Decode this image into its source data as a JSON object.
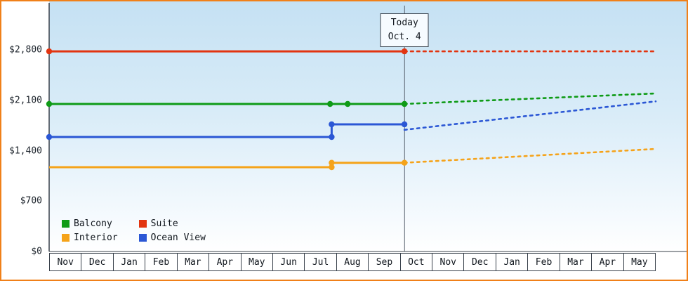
{
  "frame": {
    "border_color": "#f08019"
  },
  "today_box": {
    "line1": "Today",
    "line2": "Oct. 4"
  },
  "legend": {
    "items": [
      {
        "label": "Balcony",
        "color": "#0f9b17"
      },
      {
        "label": "Suite",
        "color": "#e23410"
      },
      {
        "label": "Interior",
        "color": "#f5a31a"
      },
      {
        "label": "Ocean View",
        "color": "#2b57d5"
      }
    ]
  },
  "chart_data": {
    "type": "line",
    "title": "",
    "x_axis": {
      "months": [
        "Nov",
        "Dec",
        "Jan",
        "Feb",
        "Mar",
        "Apr",
        "May",
        "Jun",
        "Jul",
        "Aug",
        "Sep",
        "Oct",
        "Nov",
        "Dec",
        "Jan",
        "Feb",
        "Mar",
        "Apr",
        "May"
      ]
    },
    "y_axis": {
      "max": 2800,
      "ticks": [
        {
          "label": "$0",
          "value": 0
        },
        {
          "label": "$700",
          "value": 700
        },
        {
          "label": "$1,400",
          "value": 1400
        },
        {
          "label": "$2,100",
          "value": 2100
        },
        {
          "label": "$2,800",
          "value": 2800
        }
      ]
    },
    "today": {
      "month_index": 11,
      "day": 4
    },
    "series": [
      {
        "name": "Suite",
        "color": "#e23410",
        "history": [
          [
            0,
            2780
          ],
          [
            11.13,
            2780
          ]
        ],
        "markers": [
          [
            0,
            2780
          ],
          [
            11.13,
            2780
          ]
        ],
        "forecast": [
          [
            11.13,
            2780
          ],
          [
            19,
            2780
          ]
        ]
      },
      {
        "name": "Balcony",
        "color": "#0f9b17",
        "history": [
          [
            0,
            2049
          ],
          [
            11.13,
            2049
          ]
        ],
        "markers": [
          [
            0,
            2049
          ],
          [
            8.8,
            2049
          ],
          [
            9.35,
            2049
          ],
          [
            11.13,
            2049
          ]
        ],
        "forecast": [
          [
            11.13,
            2049
          ],
          [
            19,
            2195
          ]
        ]
      },
      {
        "name": "Ocean View",
        "color": "#2b57d5",
        "history": [
          [
            0,
            1590
          ],
          [
            8.85,
            1590
          ],
          [
            8.85,
            1766
          ],
          [
            11.13,
            1766
          ]
        ],
        "markers": [
          [
            0,
            1590
          ],
          [
            8.85,
            1590
          ],
          [
            8.85,
            1766
          ],
          [
            11.13,
            1766
          ]
        ],
        "forecast": [
          [
            11.13,
            1690
          ],
          [
            19,
            2085
          ]
        ]
      },
      {
        "name": "Interior",
        "color": "#f5a31a",
        "history": [
          [
            0,
            1171
          ],
          [
            8.85,
            1171
          ],
          [
            8.85,
            1232
          ],
          [
            11.13,
            1232
          ]
        ],
        "markers": [
          [
            8.85,
            1171
          ],
          [
            8.85,
            1232
          ],
          [
            11.13,
            1232
          ]
        ],
        "forecast": [
          [
            11.13,
            1232
          ],
          [
            19,
            1424
          ]
        ]
      }
    ]
  }
}
